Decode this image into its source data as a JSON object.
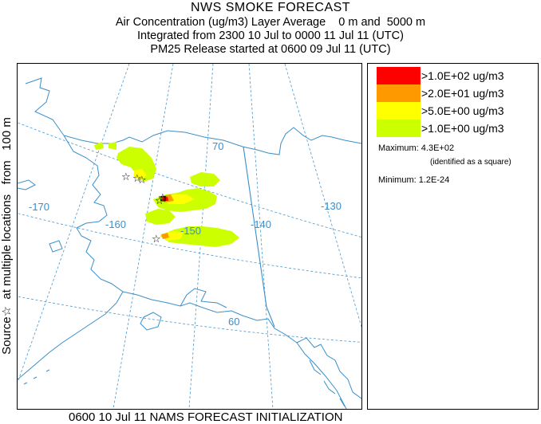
{
  "header": {
    "title": "NWS SMOKE FORECAST",
    "line1": "Air Concentration (ug/m3) Layer Average    0 m and  5000 m",
    "line2": "Integrated from 2300 10 Jul to 0000 11 Jul 11 (UTC)",
    "line3": "PM25 Release started at 0600 09 Jul 11 (UTC)"
  },
  "side_label": "Source☆  at multiple locations   from   100 m",
  "footer": "0600 10 Jul 11 NAMS FORECAST INITIALIZATION",
  "map": {
    "graticule_labels": {
      "lat_70": "70",
      "lat_60": "60",
      "lon_170": "-170",
      "lon_160": "-160",
      "lon_150": "-150",
      "lon_140": "-140",
      "lon_130": "-130"
    },
    "colors": {
      "graticule": "#4a98cc",
      "coastline": "#3a8fc9",
      "source_marker": "#000000"
    }
  },
  "legend": {
    "entries": [
      {
        "label": ">1.0E+02 ug/m3",
        "color": "#ff0000"
      },
      {
        "label": ">2.0E+01 ug/m3",
        "color": "#ff9900"
      },
      {
        "label": ">5.0E+00 ug/m3",
        "color": "#ffff00"
      },
      {
        "label": ">1.0E+00 ug/m3",
        "color": "#ccff00"
      }
    ],
    "maximum": "Maximum: 4.3E+02",
    "maximum_note": "(identified as a square)",
    "minimum": "Minimum: 1.2E-24"
  }
}
